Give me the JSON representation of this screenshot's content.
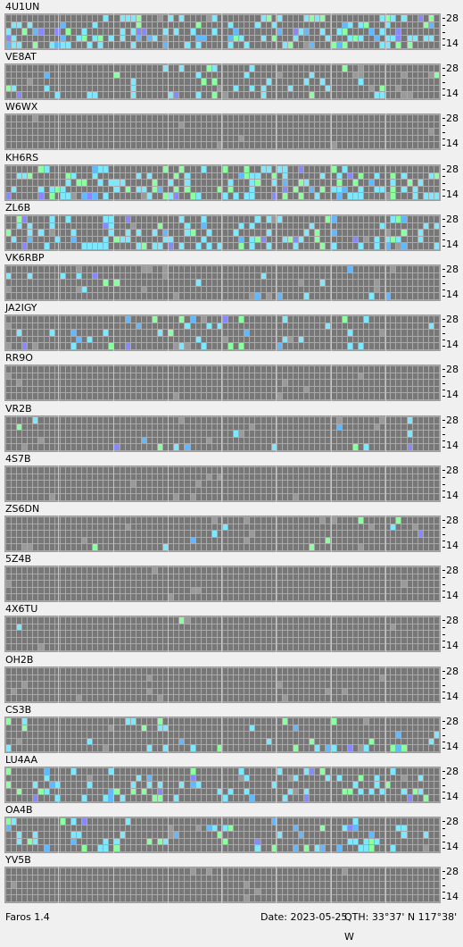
{
  "stations": [
    {
      "call": "4U1UN"
    },
    {
      "call": "VE8AT"
    },
    {
      "call": "W6WX"
    },
    {
      "call": "KH6RS"
    },
    {
      "call": "ZL6B"
    },
    {
      "call": "VK6RBP"
    },
    {
      "call": "JA2IGY"
    },
    {
      "call": "RR9O"
    },
    {
      "call": "VR2B"
    },
    {
      "call": "4S7B"
    },
    {
      "call": "ZS6DN"
    },
    {
      "call": "5Z4B"
    },
    {
      "call": "4X6TU"
    },
    {
      "call": "OH2B"
    },
    {
      "call": "CS3B"
    },
    {
      "call": "LU4AA"
    },
    {
      "call": "OA4B"
    },
    {
      "call": "YV5B"
    }
  ],
  "scale": {
    "top_label": "28",
    "bottom_label": "14"
  },
  "status": {
    "app": "Faros 1.4",
    "date": "Date: 2023-05-25",
    "qth": "QTH: 33°37' N  117°38' W"
  },
  "colors": {
    "cell_empty": "#777777",
    "cell_weak": "#9a9a9a",
    "signal_cyan": "#7fe8ff",
    "signal_green": "#8cffa0",
    "signal_blue": "#62b9ff",
    "signal_violet": "#8888ff"
  }
}
